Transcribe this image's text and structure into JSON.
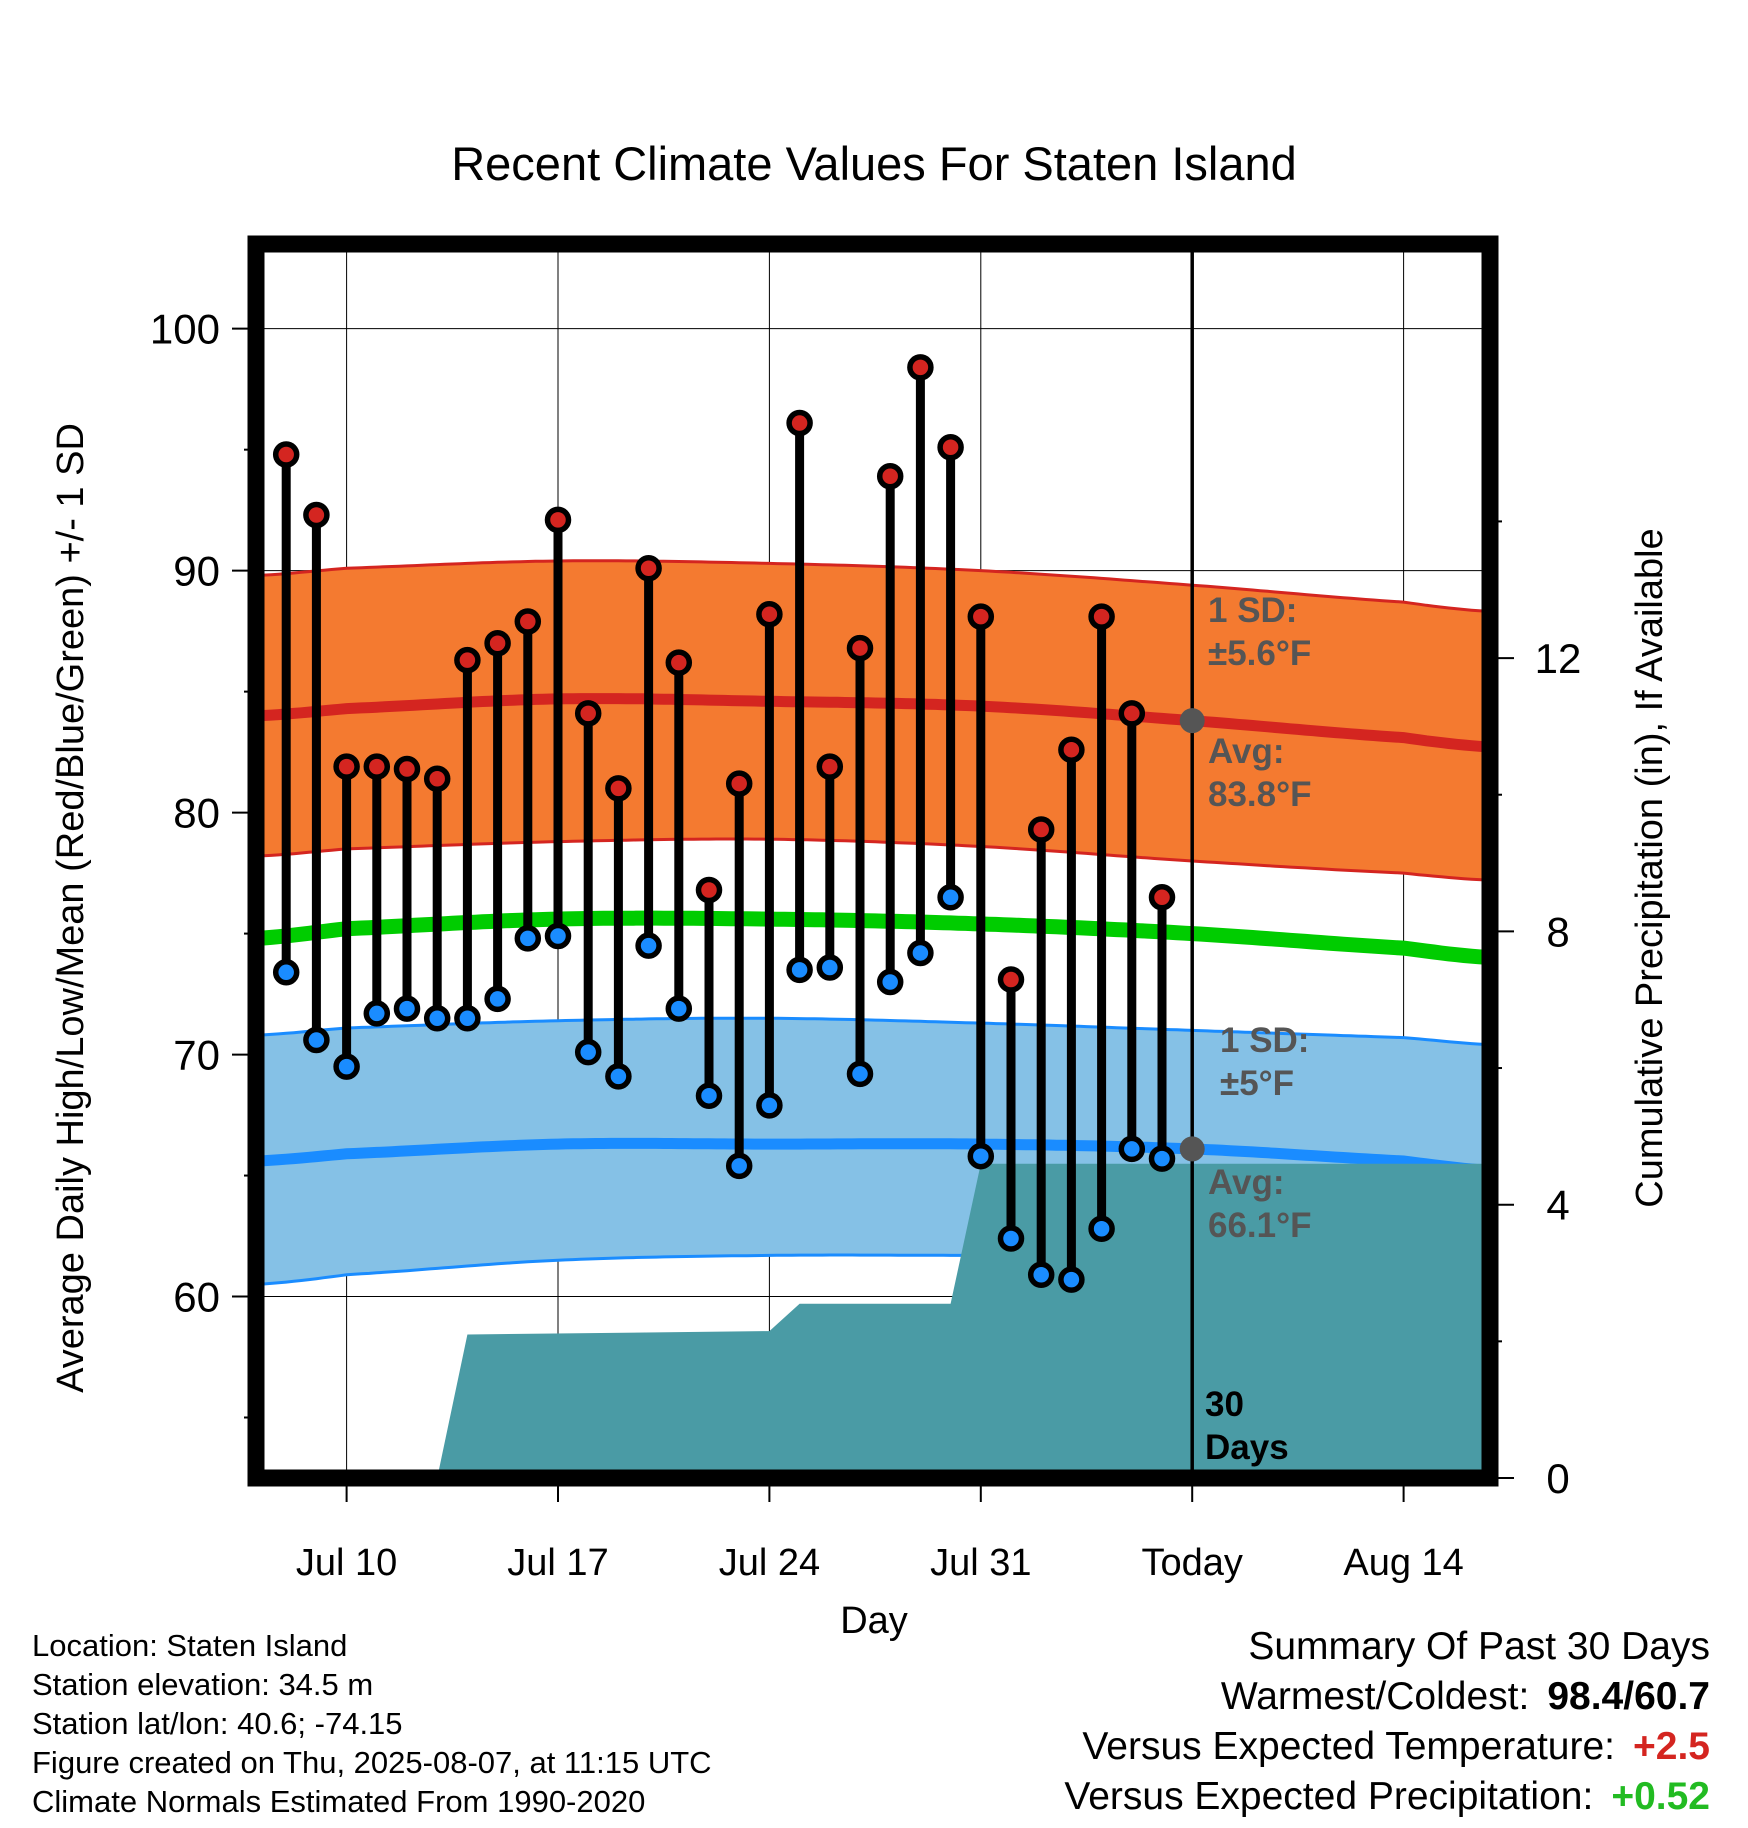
{
  "chart_data": {
    "type": "line",
    "title": "Recent Climate Values For Staten Island",
    "xlabel": "Day",
    "ylabel": "Average Daily High/Low/Mean (Red/Blue/Green) +/- 1 SD",
    "y2label": "Cumulative Precipitation (in), If Available",
    "ylim": [
      52.5,
      103.5
    ],
    "y2lim": [
      0,
      18.06
    ],
    "xlim": [
      "2025-07-07",
      "2025-08-17"
    ],
    "yticks": [
      60,
      70,
      80,
      90,
      100
    ],
    "y2ticks": [
      0,
      4,
      8,
      12
    ],
    "xticks": [
      {
        "date": "2025-07-10",
        "label": "Jul 10"
      },
      {
        "date": "2025-07-17",
        "label": "Jul 17"
      },
      {
        "date": "2025-07-24",
        "label": "Jul 24"
      },
      {
        "date": "2025-07-31",
        "label": "Jul 31"
      },
      {
        "date": "2025-08-07",
        "label": "Today"
      },
      {
        "date": "2025-08-14",
        "label": "Aug 14"
      }
    ],
    "grid": true,
    "today": "2025-08-07",
    "window_label": [
      "30",
      "Days"
    ],
    "normals": {
      "dates": [
        "2025-07-07",
        "2025-07-10",
        "2025-07-17",
        "2025-07-24",
        "2025-07-31",
        "2025-08-07",
        "2025-08-14",
        "2025-08-17"
      ],
      "high_mean": [
        84.0,
        84.3,
        84.7,
        84.6,
        84.4,
        83.8,
        83.1,
        82.7
      ],
      "high_upper": [
        89.8,
        90.1,
        90.4,
        90.3,
        90.0,
        89.4,
        88.7,
        88.3
      ],
      "high_lower": [
        78.2,
        78.5,
        78.8,
        78.9,
        78.6,
        78.0,
        77.5,
        77.2
      ],
      "mean": [
        74.8,
        75.2,
        75.6,
        75.6,
        75.4,
        75.0,
        74.4,
        74.0
      ],
      "low_mean": [
        65.6,
        65.9,
        66.3,
        66.3,
        66.3,
        66.1,
        65.6,
        65.2
      ],
      "low_upper": [
        70.8,
        71.1,
        71.4,
        71.5,
        71.3,
        71.0,
        70.7,
        70.4
      ],
      "low_lower": [
        60.5,
        60.9,
        61.5,
        61.7,
        61.7,
        61.7,
        61.7,
        61.8
      ]
    },
    "series": [
      {
        "name": "High",
        "x": [
          "2025-07-08",
          "2025-07-09",
          "2025-07-10",
          "2025-07-11",
          "2025-07-12",
          "2025-07-13",
          "2025-07-14",
          "2025-07-15",
          "2025-07-16",
          "2025-07-17",
          "2025-07-18",
          "2025-07-19",
          "2025-07-20",
          "2025-07-21",
          "2025-07-22",
          "2025-07-23",
          "2025-07-24",
          "2025-07-25",
          "2025-07-26",
          "2025-07-27",
          "2025-07-28",
          "2025-07-29",
          "2025-07-30",
          "2025-07-31",
          "2025-08-01",
          "2025-08-02",
          "2025-08-03",
          "2025-08-04",
          "2025-08-05",
          "2025-08-06"
        ],
        "values": [
          94.8,
          92.3,
          81.9,
          81.9,
          81.8,
          81.4,
          86.3,
          87.0,
          87.9,
          92.1,
          84.1,
          81.0,
          90.1,
          86.2,
          76.8,
          81.2,
          88.2,
          96.1,
          81.9,
          86.8,
          93.9,
          98.4,
          95.1,
          88.1,
          73.1,
          79.3,
          82.6,
          88.1,
          84.1,
          76.5
        ]
      },
      {
        "name": "Low",
        "x": [
          "2025-07-08",
          "2025-07-09",
          "2025-07-10",
          "2025-07-11",
          "2025-07-12",
          "2025-07-13",
          "2025-07-14",
          "2025-07-15",
          "2025-07-16",
          "2025-07-17",
          "2025-07-18",
          "2025-07-19",
          "2025-07-20",
          "2025-07-21",
          "2025-07-22",
          "2025-07-23",
          "2025-07-24",
          "2025-07-25",
          "2025-07-26",
          "2025-07-27",
          "2025-07-28",
          "2025-07-29",
          "2025-07-30",
          "2025-07-31",
          "2025-08-01",
          "2025-08-02",
          "2025-08-03",
          "2025-08-04",
          "2025-08-05",
          "2025-08-06"
        ],
        "values": [
          73.4,
          70.6,
          69.5,
          71.7,
          71.9,
          71.5,
          71.5,
          72.3,
          74.8,
          74.9,
          70.1,
          69.1,
          74.5,
          71.9,
          68.3,
          65.4,
          67.9,
          73.5,
          73.6,
          69.2,
          73.0,
          74.2,
          76.5,
          65.8,
          62.4,
          60.9,
          60.7,
          62.8,
          66.1,
          65.7
        ]
      },
      {
        "name": "Cumulative Precipitation",
        "x": [
          "2025-07-07",
          "2025-07-10",
          "2025-07-11",
          "2025-07-13",
          "2025-07-14",
          "2025-07-24",
          "2025-07-25",
          "2025-07-30",
          "2025-07-31",
          "2025-08-17"
        ],
        "values": [
          0,
          0,
          0,
          0,
          2.1,
          2.15,
          2.55,
          2.55,
          4.6,
          4.6
        ]
      }
    ],
    "annotations": {
      "high_sd": [
        "1 SD:",
        "±5.6°F"
      ],
      "high_avg": [
        "Avg:",
        "83.8°F"
      ],
      "low_sd": [
        "1 SD:",
        "±5°F"
      ],
      "low_avg": [
        "Avg:",
        "66.1°F"
      ],
      "high_avg_value": 83.8,
      "low_avg_value": 66.1
    },
    "colors": {
      "high_band": "#f47a30",
      "high_line": "#d42520",
      "low_band": "#85c1e6",
      "low_line": "#1a8cff",
      "mean_line": "#00cc00",
      "precip": "#4a9ba5",
      "annotation": "#555555",
      "high_dot": "#d42520",
      "low_dot": "#1a8cff"
    }
  },
  "info": {
    "location": "Location: Staten Island",
    "elevation": "Station elevation: 34.5 m",
    "latlon": "Station lat/lon: 40.6; -74.15",
    "created": "Figure created on Thu, 2025-08-07, at 11:15 UTC",
    "normals": "Climate Normals Estimated From 1990-2020"
  },
  "summary": {
    "title": "Summary Of Past 30 Days",
    "warm_cold_label": "Warmest/Coldest:",
    "warm_cold_value": "98.4/60.7",
    "temp_label": "Versus Expected Temperature:",
    "temp_value": "+2.5",
    "temp_color": "#d42520",
    "precip_label": "Versus Expected Precipitation:",
    "precip_value": "+0.52",
    "precip_color": "#22bb22"
  }
}
